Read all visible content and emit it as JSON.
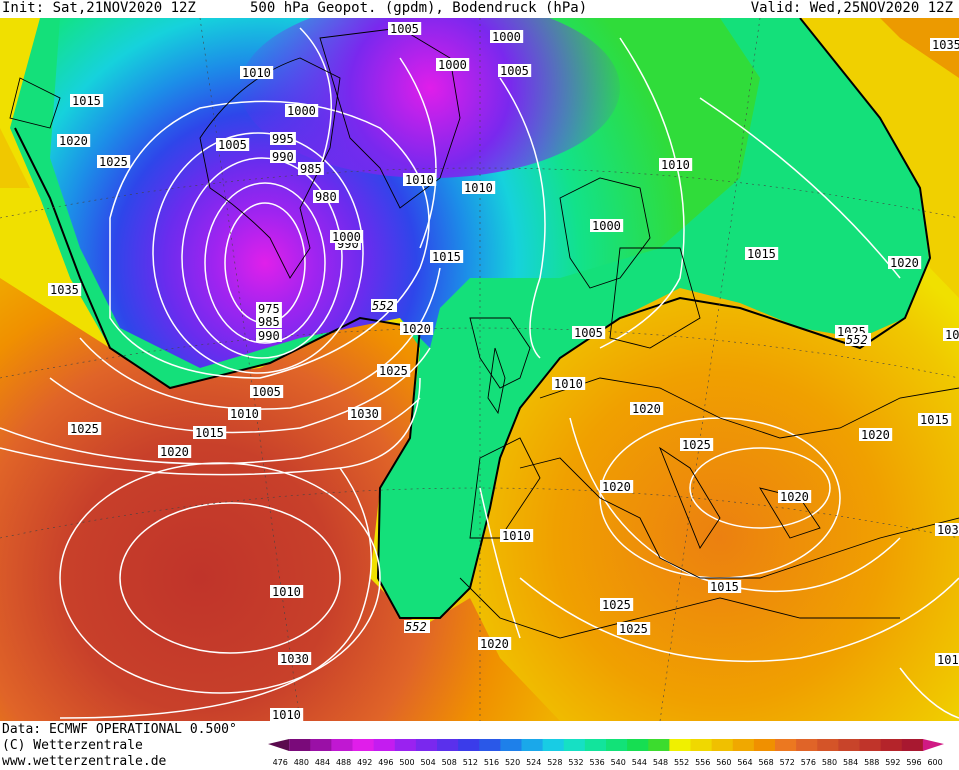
{
  "header": {
    "init": "Init: Sat,21NOV2020 12Z",
    "title": "500 hPa Geopot. (gpdm), Bodendruck (hPa)",
    "valid": "Valid: Wed,25NOV2020 12Z"
  },
  "footer": {
    "data_source": "Data: ECMWF OPERATIONAL 0.500°",
    "copyright": "(C) Wetterzentrale",
    "website": "www.wetterzentrale.de"
  },
  "colorbar": {
    "values": [
      "476",
      "480",
      "484",
      "488",
      "492",
      "496",
      "500",
      "504",
      "508",
      "512",
      "516",
      "520",
      "524",
      "528",
      "532",
      "536",
      "540",
      "544",
      "548",
      "552",
      "556",
      "560",
      "564",
      "568",
      "572",
      "576",
      "580",
      "584",
      "588",
      "592",
      "596",
      "600"
    ],
    "colors": [
      "#5a0a4e",
      "#7a0a7a",
      "#9a10a6",
      "#c018d2",
      "#e01eea",
      "#c41cf0",
      "#9a22f0",
      "#7a28ee",
      "#5a30ec",
      "#3a3cea",
      "#2a58e8",
      "#1e80ea",
      "#1aa8ea",
      "#18cce4",
      "#16e0c4",
      "#12e49c",
      "#12e278",
      "#16de52",
      "#3cdc2e",
      "#f0f000",
      "#f0d800",
      "#f0c000",
      "#f0a800",
      "#f09000",
      "#ec7820",
      "#e06428",
      "#d45428",
      "#c8442a",
      "#c0342a",
      "#b4242a",
      "#a81830",
      "#d01a84"
    ]
  },
  "pressure_labels": [
    "1005",
    "1000",
    "1000",
    "1005",
    "1010",
    "1035",
    "1015",
    "1000",
    "995",
    "990",
    "1020",
    "1005",
    "1025",
    "985",
    "1010",
    "1010",
    "1010",
    "980",
    "1000",
    "990",
    "1000",
    "1015",
    "1015",
    "1020",
    "1035",
    "975",
    "985",
    "990",
    "1020",
    "1005",
    "1025",
    "1030",
    "1005",
    "1010",
    "1010",
    "1020",
    "1025",
    "1030",
    "1015",
    "1025",
    "1020",
    "1020",
    "1025",
    "1015",
    "1020",
    "1010",
    "1020",
    "1035",
    "1010",
    "1015",
    "1020",
    "1030",
    "1025",
    "1010",
    "1000",
    "1025",
    "1010",
    "1020",
    "1015"
  ],
  "height_labels": [
    "552",
    "552",
    "552"
  ],
  "legend_level": "552"
}
